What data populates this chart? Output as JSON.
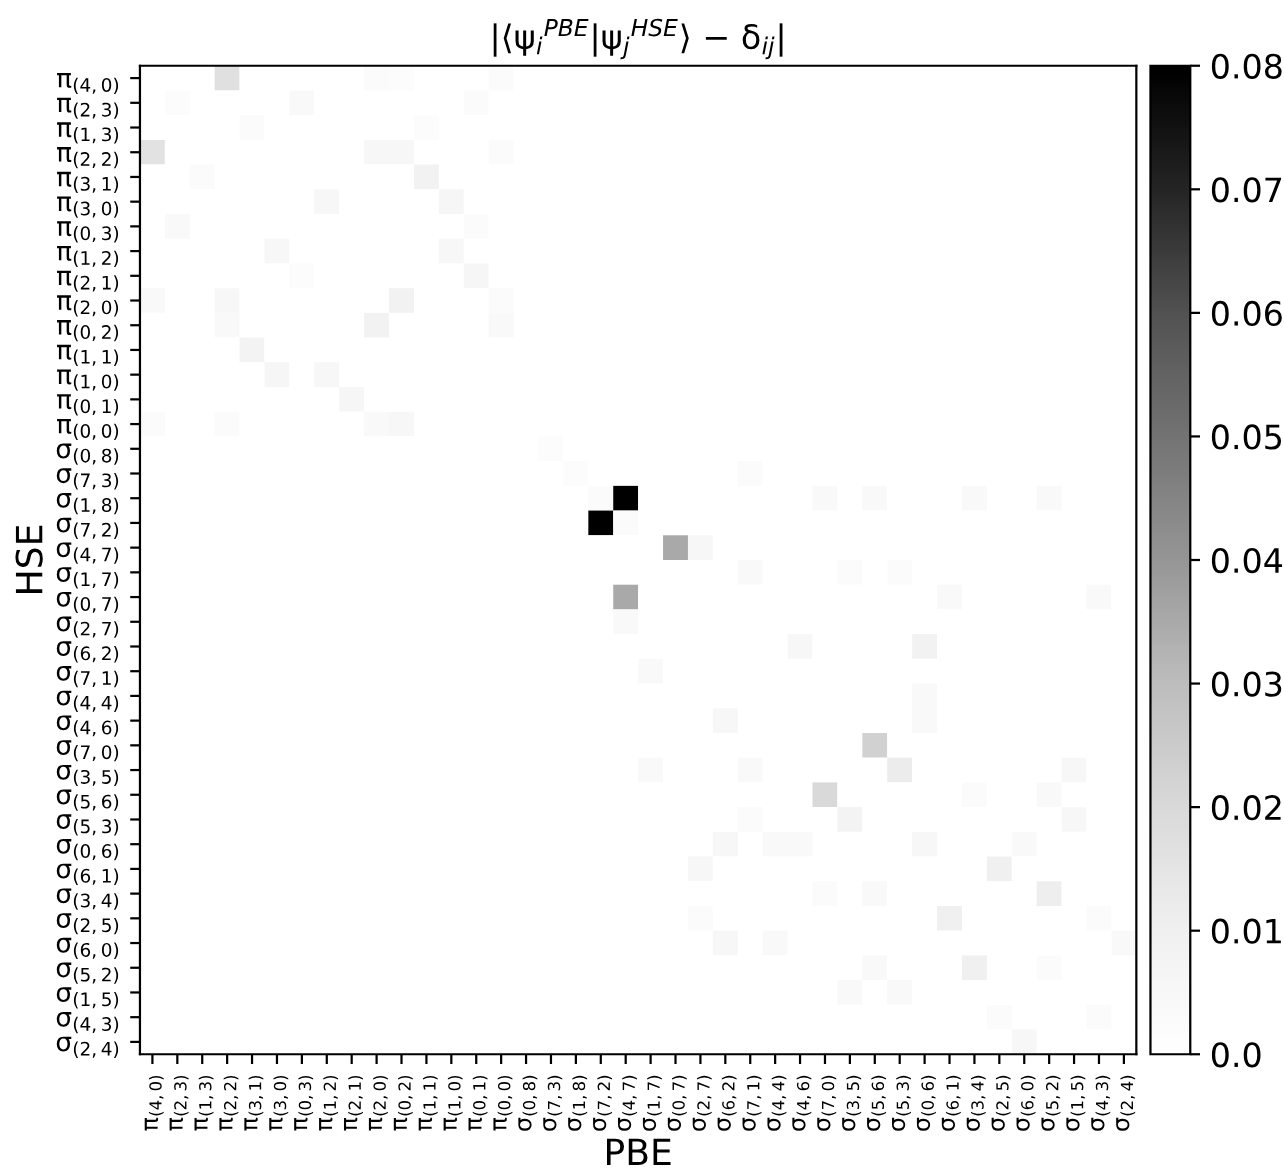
{
  "chart_data": {
    "type": "heatmap",
    "title": "|⟨ψ$_{i}$$^{PBE}$|ψ$_{j}$$^{HSE}$⟩ − δ$_{ij}$|",
    "xlabel": "PBE",
    "ylabel": "HSE",
    "categories": [
      "π$_{(4,0)}$",
      "π$_{(2,3)}$",
      "π$_{(1,3)}$",
      "π$_{(2,2)}$",
      "π$_{(3,1)}$",
      "π$_{(3,0)}$",
      "π$_{(0,3)}$",
      "π$_{(1,2)}$",
      "π$_{(2,1)}$",
      "π$_{(2,0)}$",
      "π$_{(0,2)}$",
      "π$_{(1,1)}$",
      "π$_{(1,0)}$",
      "π$_{(0,1)}$",
      "π$_{(0,0)}$",
      "σ$_{(0,8)}$",
      "σ$_{(7,3)}$",
      "σ$_{(1,8)}$",
      "σ$_{(7,2)}$",
      "σ$_{(4,7)}$",
      "σ$_{(1,7)}$",
      "σ$_{(0,7)}$",
      "σ$_{(2,7)}$",
      "σ$_{(6,2)}$",
      "σ$_{(7,1)}$",
      "σ$_{(4,4)}$",
      "σ$_{(4,6)}$",
      "σ$_{(7,0)}$",
      "σ$_{(3,5)}$",
      "σ$_{(5,6)}$",
      "σ$_{(5,3)}$",
      "σ$_{(0,6)}$",
      "σ$_{(6,1)}$",
      "σ$_{(3,4)}$",
      "σ$_{(2,5)}$",
      "σ$_{(6,0)}$",
      "σ$_{(5,2)}$",
      "σ$_{(1,5)}$",
      "σ$_{(4,3)}$",
      "σ$_{(2,4)}$"
    ],
    "y_categories": [
      "π$_{(4,0)}$",
      "π$_{(2,3)}$",
      "π$_{(1,3)}$",
      "π$_{(2,2)}$",
      "π$_{(3,1)}$",
      "π$_{(3,0)}$",
      "π$_{(0,3)}$",
      "π$_{(1,2)}$",
      "π$_{(2,1)}$",
      "π$_{(2,0)}$",
      "π$_{(0,2)}$",
      "π$_{(1,1)}$",
      "π$_{(1,0)}$",
      "π$_{(0,1)}$",
      "π$_{(0,0)}$",
      "σ$_{(0,8)}$",
      "σ$_{(7,3)}$",
      "σ$_{(1,8)}$",
      "σ$_{(7,2)}$",
      "σ$_{(4,7)}$",
      "σ$_{(1,7)}$",
      "σ$_{(0,7)}$",
      "σ$_{(2,7)}$",
      "σ$_{(6,2)}$",
      "σ$_{(7,1)}$",
      "σ$_{(4,4)}$",
      "σ$_{(4,6)}$",
      "σ$_{(7,0)}$",
      "σ$_{(3,5)}$",
      "σ$_{(5,6)}$",
      "σ$_{(5,3)}$",
      "σ$_{(0,6)}$",
      "σ$_{(6,1)}$",
      "σ$_{(3,4)}$",
      "σ$_{(2,5)}$",
      "σ$_{(6,0)}$",
      "σ$_{(5,2)}$",
      "σ$_{(1,5)}$",
      "σ$_{(4,3)}$",
      "σ$_{(2,4)}$"
    ],
    "clim": [
      0,
      0.08
    ],
    "cticks": [
      {
        "value": 0,
        "label": "0.0"
      },
      0.01,
      0.02,
      0.03,
      0.04,
      0.05,
      0.06,
      0.07,
      0.08
    ],
    "cells": [
      [
        0,
        0,
        0,
        0.017,
        0,
        0,
        0,
        0,
        0,
        0.003,
        0.002,
        0,
        0,
        0,
        0.003,
        0,
        0,
        0,
        0,
        0,
        0,
        0,
        0,
        0,
        0,
        0,
        0,
        0,
        0,
        0,
        0,
        0,
        0,
        0,
        0,
        0,
        0,
        0,
        0,
        0
      ],
      [
        0,
        0.002,
        0,
        0,
        0,
        0,
        0.004,
        0,
        0,
        0,
        0,
        0,
        0,
        0.003,
        0,
        0,
        0,
        0,
        0,
        0,
        0,
        0,
        0,
        0,
        0,
        0,
        0,
        0,
        0,
        0,
        0,
        0,
        0,
        0,
        0,
        0,
        0,
        0,
        0,
        0
      ],
      [
        0,
        0,
        0,
        0,
        0.003,
        0,
        0,
        0,
        0,
        0,
        0,
        0.002,
        0,
        0,
        0,
        0,
        0,
        0,
        0,
        0,
        0,
        0,
        0,
        0,
        0,
        0,
        0,
        0,
        0,
        0,
        0,
        0,
        0,
        0,
        0,
        0,
        0,
        0,
        0,
        0
      ],
      [
        0.016,
        0,
        0,
        0,
        0,
        0,
        0,
        0,
        0,
        0.005,
        0.005,
        0,
        0,
        0,
        0.003,
        0,
        0,
        0,
        0,
        0,
        0,
        0,
        0,
        0,
        0,
        0,
        0,
        0,
        0,
        0,
        0,
        0,
        0,
        0,
        0,
        0,
        0,
        0,
        0,
        0
      ],
      [
        0,
        0,
        0.003,
        0,
        0,
        0,
        0,
        0,
        0,
        0,
        0,
        0.009,
        0,
        0,
        0,
        0,
        0,
        0,
        0,
        0,
        0,
        0,
        0,
        0,
        0,
        0,
        0,
        0,
        0,
        0,
        0,
        0,
        0,
        0,
        0,
        0,
        0,
        0,
        0,
        0
      ],
      [
        0,
        0,
        0,
        0,
        0,
        0,
        0,
        0.005,
        0,
        0,
        0,
        0,
        0.006,
        0,
        0,
        0,
        0,
        0,
        0,
        0,
        0,
        0,
        0,
        0,
        0,
        0,
        0,
        0,
        0,
        0,
        0,
        0,
        0,
        0,
        0,
        0,
        0,
        0,
        0,
        0
      ],
      [
        0,
        0.004,
        0,
        0,
        0,
        0,
        0,
        0,
        0,
        0,
        0,
        0,
        0,
        0.003,
        0,
        0,
        0,
        0,
        0,
        0,
        0,
        0,
        0,
        0,
        0,
        0,
        0,
        0,
        0,
        0,
        0,
        0,
        0,
        0,
        0,
        0,
        0,
        0,
        0,
        0
      ],
      [
        0,
        0,
        0,
        0,
        0,
        0.005,
        0,
        0,
        0,
        0,
        0,
        0,
        0.005,
        0,
        0,
        0,
        0,
        0,
        0,
        0,
        0,
        0,
        0,
        0,
        0,
        0,
        0,
        0,
        0,
        0,
        0,
        0,
        0,
        0,
        0,
        0,
        0,
        0,
        0,
        0
      ],
      [
        0,
        0,
        0,
        0,
        0,
        0,
        0.002,
        0,
        0,
        0,
        0,
        0,
        0,
        0.006,
        0,
        0,
        0,
        0,
        0,
        0,
        0,
        0,
        0,
        0,
        0,
        0,
        0,
        0,
        0,
        0,
        0,
        0,
        0,
        0,
        0,
        0,
        0,
        0,
        0,
        0
      ],
      [
        0.004,
        0,
        0,
        0.005,
        0,
        0,
        0,
        0,
        0,
        0,
        0.009,
        0,
        0,
        0,
        0.003,
        0,
        0,
        0,
        0,
        0,
        0,
        0,
        0,
        0,
        0,
        0,
        0,
        0,
        0,
        0,
        0,
        0,
        0,
        0,
        0,
        0,
        0,
        0,
        0,
        0
      ],
      [
        0,
        0,
        0,
        0.004,
        0,
        0,
        0,
        0,
        0,
        0.009,
        0,
        0,
        0,
        0,
        0.004,
        0,
        0,
        0,
        0,
        0,
        0,
        0,
        0,
        0,
        0,
        0,
        0,
        0,
        0,
        0,
        0,
        0,
        0,
        0,
        0,
        0,
        0,
        0,
        0,
        0
      ],
      [
        0,
        0,
        0,
        0,
        0.008,
        0,
        0,
        0,
        0,
        0,
        0,
        0,
        0,
        0,
        0,
        0,
        0,
        0,
        0,
        0,
        0,
        0,
        0,
        0,
        0,
        0,
        0,
        0,
        0,
        0,
        0,
        0,
        0,
        0,
        0,
        0,
        0,
        0,
        0,
        0
      ],
      [
        0,
        0,
        0,
        0,
        0,
        0.006,
        0,
        0.005,
        0,
        0,
        0,
        0,
        0,
        0,
        0,
        0,
        0,
        0,
        0,
        0,
        0,
        0,
        0,
        0,
        0,
        0,
        0,
        0,
        0,
        0,
        0,
        0,
        0,
        0,
        0,
        0,
        0,
        0,
        0,
        0
      ],
      [
        0,
        0,
        0,
        0,
        0,
        0,
        0,
        0,
        0.006,
        0,
        0,
        0,
        0,
        0,
        0,
        0,
        0,
        0,
        0,
        0,
        0,
        0,
        0,
        0,
        0,
        0,
        0,
        0,
        0,
        0,
        0,
        0,
        0,
        0,
        0,
        0,
        0,
        0,
        0,
        0
      ],
      [
        0.003,
        0,
        0,
        0.003,
        0,
        0,
        0,
        0,
        0,
        0.004,
        0.005,
        0,
        0,
        0,
        0,
        0,
        0,
        0,
        0,
        0,
        0,
        0,
        0,
        0,
        0,
        0,
        0,
        0,
        0,
        0,
        0,
        0,
        0,
        0,
        0,
        0,
        0,
        0,
        0,
        0
      ],
      [
        0,
        0,
        0,
        0,
        0,
        0,
        0,
        0,
        0,
        0,
        0,
        0,
        0,
        0,
        0,
        0,
        0.002,
        0,
        0,
        0,
        0,
        0,
        0,
        0,
        0,
        0,
        0,
        0,
        0,
        0,
        0,
        0,
        0,
        0,
        0,
        0,
        0,
        0,
        0,
        0
      ],
      [
        0,
        0,
        0,
        0,
        0,
        0,
        0,
        0,
        0,
        0,
        0,
        0,
        0,
        0,
        0,
        0,
        0,
        0.002,
        0,
        0,
        0,
        0,
        0,
        0,
        0.003,
        0,
        0,
        0,
        0,
        0,
        0,
        0,
        0,
        0,
        0,
        0,
        0,
        0,
        0,
        0
      ],
      [
        0,
        0,
        0,
        0,
        0,
        0,
        0,
        0,
        0,
        0,
        0,
        0,
        0,
        0,
        0,
        0,
        0,
        0,
        0.003,
        0.08,
        0,
        0,
        0,
        0,
        0,
        0,
        0,
        0.004,
        0,
        0.004,
        0,
        0,
        0,
        0.004,
        0,
        0,
        0.004,
        0,
        0,
        0
      ],
      [
        0,
        0,
        0,
        0,
        0,
        0,
        0,
        0,
        0,
        0,
        0,
        0,
        0,
        0,
        0,
        0,
        0,
        0,
        0.08,
        0.003,
        0,
        0,
        0,
        0,
        0,
        0,
        0,
        0,
        0,
        0,
        0,
        0,
        0,
        0,
        0,
        0,
        0,
        0,
        0,
        0
      ],
      [
        0,
        0,
        0,
        0,
        0,
        0,
        0,
        0,
        0,
        0,
        0,
        0,
        0,
        0,
        0,
        0,
        0,
        0,
        0,
        0,
        0,
        0.035,
        0.005,
        0,
        0,
        0,
        0,
        0,
        0,
        0,
        0,
        0,
        0,
        0,
        0,
        0,
        0,
        0,
        0,
        0
      ],
      [
        0,
        0,
        0,
        0,
        0,
        0,
        0,
        0,
        0,
        0,
        0,
        0,
        0,
        0,
        0,
        0,
        0,
        0,
        0,
        0,
        0,
        0,
        0,
        0,
        0.004,
        0,
        0,
        0,
        0.003,
        0,
        0.003,
        0,
        0,
        0,
        0,
        0,
        0,
        0,
        0,
        0
      ],
      [
        0,
        0,
        0,
        0,
        0,
        0,
        0,
        0,
        0,
        0,
        0,
        0,
        0,
        0,
        0,
        0,
        0,
        0,
        0,
        0.035,
        0,
        0,
        0,
        0,
        0,
        0,
        0,
        0,
        0,
        0,
        0,
        0,
        0.004,
        0,
        0,
        0,
        0,
        0,
        0.004,
        0
      ],
      [
        0,
        0,
        0,
        0,
        0,
        0,
        0,
        0,
        0,
        0,
        0,
        0,
        0,
        0,
        0,
        0,
        0,
        0,
        0,
        0.004,
        0,
        0,
        0,
        0,
        0,
        0,
        0,
        0,
        0,
        0,
        0,
        0,
        0,
        0,
        0,
        0,
        0,
        0,
        0,
        0
      ],
      [
        0,
        0,
        0,
        0,
        0,
        0,
        0,
        0,
        0,
        0,
        0,
        0,
        0,
        0,
        0,
        0,
        0,
        0,
        0,
        0,
        0,
        0,
        0,
        0,
        0,
        0,
        0.005,
        0,
        0,
        0,
        0,
        0.009,
        0,
        0,
        0,
        0,
        0,
        0,
        0,
        0
      ],
      [
        0,
        0,
        0,
        0,
        0,
        0,
        0,
        0,
        0,
        0,
        0,
        0,
        0,
        0,
        0,
        0,
        0,
        0,
        0,
        0,
        0.004,
        0,
        0,
        0,
        0,
        0,
        0,
        0,
        0,
        0,
        0,
        0,
        0,
        0,
        0,
        0,
        0,
        0,
        0,
        0
      ],
      [
        0,
        0,
        0,
        0,
        0,
        0,
        0,
        0,
        0,
        0,
        0,
        0,
        0,
        0,
        0,
        0,
        0,
        0,
        0,
        0,
        0,
        0,
        0,
        0,
        0,
        0,
        0,
        0,
        0,
        0,
        0,
        0.004,
        0,
        0,
        0,
        0,
        0,
        0,
        0,
        0
      ],
      [
        0,
        0,
        0,
        0,
        0,
        0,
        0,
        0,
        0,
        0,
        0,
        0,
        0,
        0,
        0,
        0,
        0,
        0,
        0,
        0,
        0,
        0,
        0,
        0.005,
        0,
        0,
        0,
        0,
        0,
        0,
        0,
        0.004,
        0,
        0,
        0,
        0,
        0,
        0,
        0,
        0
      ],
      [
        0,
        0,
        0,
        0,
        0,
        0,
        0,
        0,
        0,
        0,
        0,
        0,
        0,
        0,
        0,
        0,
        0,
        0,
        0,
        0,
        0,
        0,
        0,
        0,
        0,
        0,
        0,
        0,
        0,
        0.023,
        0,
        0,
        0,
        0,
        0,
        0,
        0,
        0,
        0,
        0
      ],
      [
        0,
        0,
        0,
        0,
        0,
        0,
        0,
        0,
        0,
        0,
        0,
        0,
        0,
        0,
        0,
        0,
        0,
        0,
        0,
        0,
        0.004,
        0,
        0,
        0,
        0.004,
        0,
        0,
        0,
        0,
        0,
        0.012,
        0,
        0,
        0,
        0,
        0,
        0,
        0.005,
        0,
        0
      ],
      [
        0,
        0,
        0,
        0,
        0,
        0,
        0,
        0,
        0,
        0,
        0,
        0,
        0,
        0,
        0,
        0,
        0,
        0,
        0,
        0,
        0,
        0,
        0,
        0,
        0,
        0,
        0,
        0.02,
        0,
        0,
        0,
        0,
        0,
        0.003,
        0,
        0,
        0.004,
        0,
        0,
        0
      ],
      [
        0,
        0,
        0,
        0,
        0,
        0,
        0,
        0,
        0,
        0,
        0,
        0,
        0,
        0,
        0,
        0,
        0,
        0,
        0,
        0,
        0,
        0,
        0,
        0,
        0.003,
        0,
        0,
        0,
        0.008,
        0,
        0,
        0,
        0,
        0,
        0,
        0,
        0,
        0.005,
        0,
        0
      ],
      [
        0,
        0,
        0,
        0,
        0,
        0,
        0,
        0,
        0,
        0,
        0,
        0,
        0,
        0,
        0,
        0,
        0,
        0,
        0,
        0,
        0,
        0,
        0,
        0.005,
        0,
        0.004,
        0.004,
        0,
        0,
        0,
        0,
        0.005,
        0,
        0,
        0,
        0.004,
        0,
        0,
        0,
        0
      ],
      [
        0,
        0,
        0,
        0,
        0,
        0,
        0,
        0,
        0,
        0,
        0,
        0,
        0,
        0,
        0,
        0,
        0,
        0,
        0,
        0,
        0,
        0,
        0.005,
        0,
        0,
        0,
        0,
        0,
        0,
        0,
        0,
        0,
        0,
        0,
        0.01,
        0,
        0,
        0,
        0,
        0
      ],
      [
        0,
        0,
        0,
        0,
        0,
        0,
        0,
        0,
        0,
        0,
        0,
        0,
        0,
        0,
        0,
        0,
        0,
        0,
        0,
        0,
        0,
        0,
        0,
        0,
        0,
        0,
        0,
        0.003,
        0,
        0.004,
        0,
        0,
        0,
        0,
        0,
        0,
        0.011,
        0,
        0,
        0
      ],
      [
        0,
        0,
        0,
        0,
        0,
        0,
        0,
        0,
        0,
        0,
        0,
        0,
        0,
        0,
        0,
        0,
        0,
        0,
        0,
        0,
        0,
        0,
        0.003,
        0,
        0,
        0,
        0,
        0,
        0,
        0,
        0,
        0,
        0.01,
        0,
        0,
        0,
        0,
        0,
        0.003,
        0
      ],
      [
        0,
        0,
        0,
        0,
        0,
        0,
        0,
        0,
        0,
        0,
        0,
        0,
        0,
        0,
        0,
        0,
        0,
        0,
        0,
        0,
        0,
        0,
        0,
        0.005,
        0,
        0.004,
        0,
        0,
        0,
        0,
        0,
        0,
        0,
        0,
        0,
        0,
        0,
        0,
        0,
        0.004
      ],
      [
        0,
        0,
        0,
        0,
        0,
        0,
        0,
        0,
        0,
        0,
        0,
        0,
        0,
        0,
        0,
        0,
        0,
        0,
        0,
        0,
        0,
        0,
        0,
        0,
        0,
        0,
        0,
        0,
        0,
        0.004,
        0,
        0,
        0,
        0.01,
        0,
        0,
        0.003,
        0,
        0,
        0
      ],
      [
        0,
        0,
        0,
        0,
        0,
        0,
        0,
        0,
        0,
        0,
        0,
        0,
        0,
        0,
        0,
        0,
        0,
        0,
        0,
        0,
        0,
        0,
        0,
        0,
        0,
        0,
        0,
        0,
        0.004,
        0,
        0.004,
        0,
        0,
        0,
        0,
        0,
        0,
        0,
        0,
        0
      ],
      [
        0,
        0,
        0,
        0,
        0,
        0,
        0,
        0,
        0,
        0,
        0,
        0,
        0,
        0,
        0,
        0,
        0,
        0,
        0,
        0,
        0,
        0,
        0,
        0,
        0,
        0,
        0,
        0,
        0,
        0,
        0,
        0,
        0,
        0,
        0.003,
        0,
        0,
        0,
        0.003,
        0
      ],
      [
        0,
        0,
        0,
        0,
        0,
        0,
        0,
        0,
        0,
        0,
        0,
        0,
        0,
        0,
        0,
        0,
        0,
        0,
        0,
        0,
        0,
        0,
        0,
        0,
        0,
        0,
        0,
        0,
        0,
        0,
        0,
        0,
        0,
        0,
        0,
        0.005,
        0,
        0,
        0,
        0
      ]
    ]
  }
}
